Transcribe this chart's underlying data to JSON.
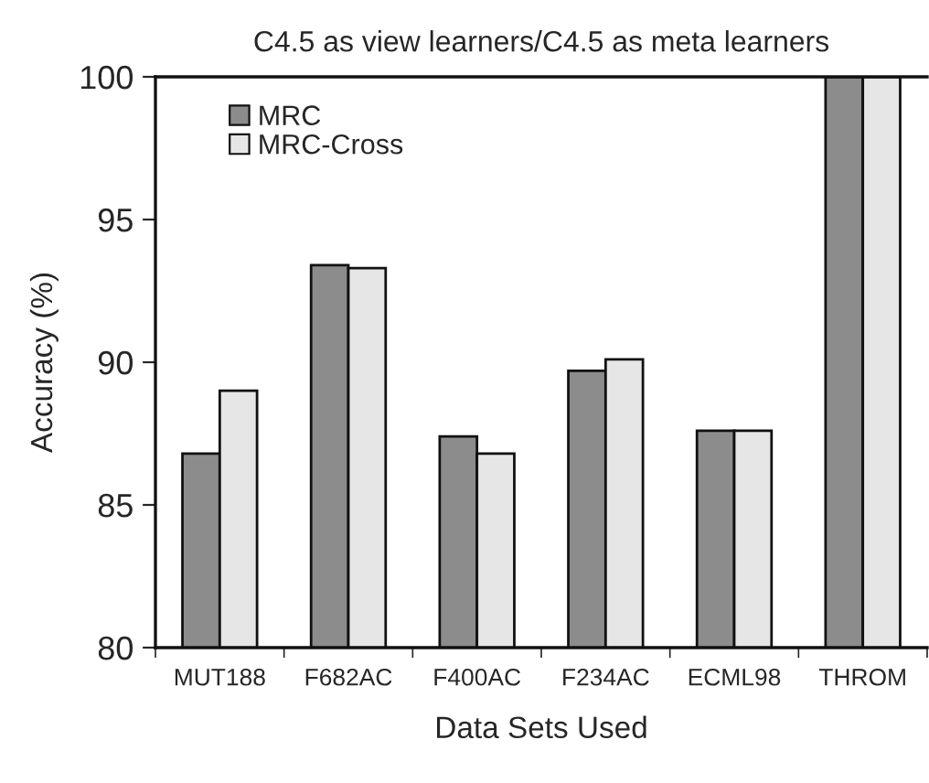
{
  "chart_data": {
    "type": "bar",
    "title": "C4.5 as view learners/C4.5 as meta learners",
    "xlabel": "Data Sets Used",
    "ylabel": "Accuracy (%)",
    "categories": [
      "MUT188",
      "F682AC",
      "F400AC",
      "F234AC",
      "ECML98",
      "THROM"
    ],
    "series": [
      {
        "name": "MRC",
        "color": "#8c8c8c",
        "values": [
          86.8,
          93.4,
          87.4,
          89.7,
          87.6,
          100
        ]
      },
      {
        "name": "MRC-Cross",
        "color": "#e6e6e6",
        "values": [
          89.0,
          93.3,
          86.8,
          90.1,
          87.6,
          100
        ]
      }
    ],
    "ylim": [
      80,
      100
    ],
    "yticks": [
      80,
      85,
      90,
      95,
      100
    ],
    "grid": false,
    "legend": "top left"
  }
}
